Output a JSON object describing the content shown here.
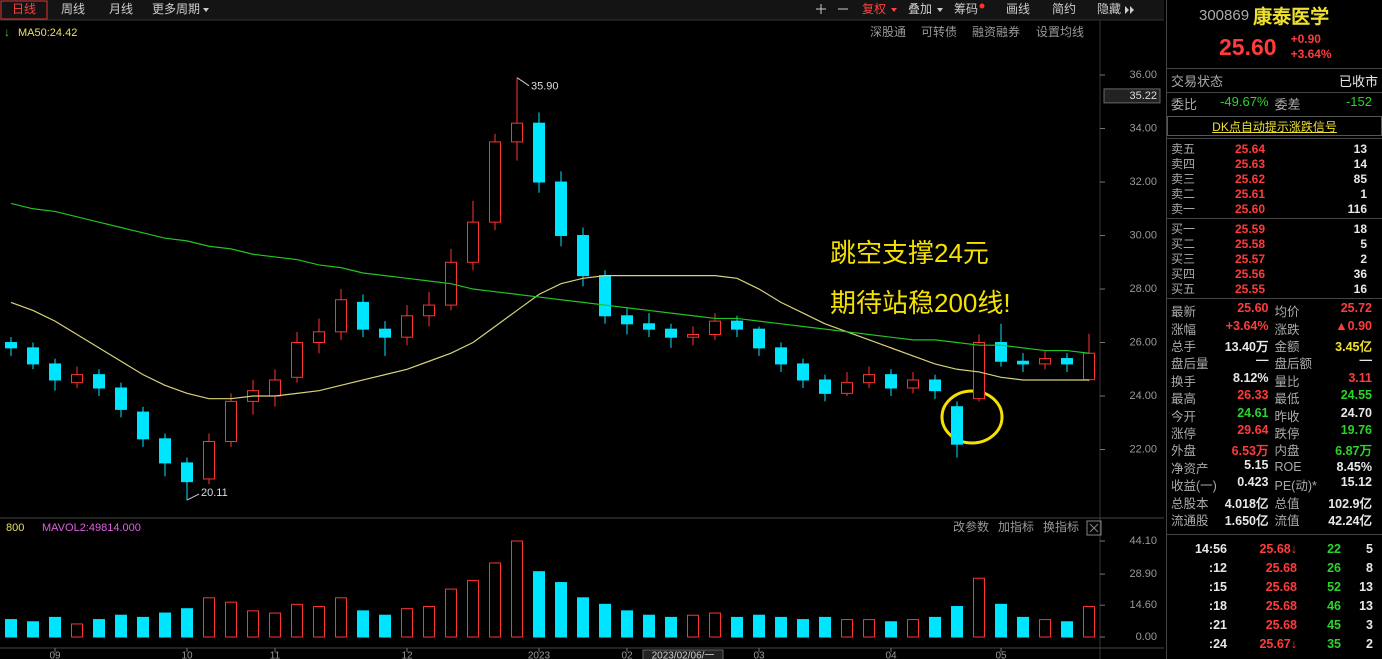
{
  "toolbar": {
    "periods": [
      "日线",
      "周线",
      "月线",
      "更多周期"
    ],
    "tools": [
      "复权",
      "叠加",
      "筹码",
      "画线",
      "简约",
      "隐藏"
    ]
  },
  "settings": [
    "深股通",
    "可转债",
    "融资融券",
    "设置均线"
  ],
  "chart_data": {
    "type": "candlestick",
    "ma_legend": "MA50:24.42",
    "categories": [
      null,
      null,
      "09",
      null,
      null,
      null,
      null,
      null,
      "10",
      null,
      null,
      null,
      "11",
      null,
      null,
      null,
      null,
      null,
      "12",
      null,
      null,
      null,
      null,
      null,
      "2023",
      null,
      null,
      null,
      "02",
      null,
      null,
      null,
      null,
      null,
      "03",
      null,
      null,
      null,
      null,
      null,
      "04",
      null,
      null,
      null,
      null,
      "05",
      null,
      null,
      null,
      null
    ],
    "cursor_date": "2023/02/06/一",
    "candles": [
      [
        26.0,
        26.2,
        25.5,
        25.8
      ],
      [
        25.8,
        26.0,
        25.0,
        25.2
      ],
      [
        25.2,
        25.4,
        24.2,
        24.6
      ],
      [
        24.5,
        25.1,
        24.3,
        24.8
      ],
      [
        24.8,
        25.0,
        24.0,
        24.3
      ],
      [
        24.3,
        24.5,
        23.2,
        23.5
      ],
      [
        23.4,
        23.6,
        22.1,
        22.4
      ],
      [
        22.4,
        22.6,
        21.0,
        21.5
      ],
      [
        21.5,
        21.7,
        20.11,
        20.8
      ],
      [
        20.9,
        22.6,
        20.7,
        22.3
      ],
      [
        22.3,
        24.1,
        22.1,
        23.8
      ],
      [
        23.8,
        24.6,
        23.3,
        24.2
      ],
      [
        24.0,
        25.0,
        23.6,
        24.6
      ],
      [
        24.7,
        26.4,
        24.5,
        26.0
      ],
      [
        26.0,
        26.9,
        25.6,
        26.4
      ],
      [
        26.4,
        28.0,
        26.1,
        27.6
      ],
      [
        27.5,
        27.8,
        26.2,
        26.5
      ],
      [
        26.5,
        26.8,
        25.5,
        26.2
      ],
      [
        26.2,
        27.4,
        25.9,
        27.0
      ],
      [
        27.0,
        27.9,
        26.6,
        27.4
      ],
      [
        27.4,
        29.5,
        27.2,
        29.0
      ],
      [
        29.0,
        31.3,
        28.7,
        30.5
      ],
      [
        30.5,
        33.8,
        30.2,
        33.5
      ],
      [
        33.5,
        35.9,
        32.8,
        34.2
      ],
      [
        34.2,
        34.6,
        31.6,
        32.0
      ],
      [
        32.0,
        32.4,
        29.6,
        30.0
      ],
      [
        30.0,
        30.3,
        28.1,
        28.5
      ],
      [
        28.5,
        28.7,
        26.7,
        27.0
      ],
      [
        27.0,
        27.3,
        26.3,
        26.7
      ],
      [
        26.7,
        27.1,
        26.2,
        26.5
      ],
      [
        26.5,
        26.7,
        25.8,
        26.2
      ],
      [
        26.2,
        26.6,
        25.9,
        26.3
      ],
      [
        26.3,
        27.1,
        26.1,
        26.8
      ],
      [
        26.8,
        27.0,
        26.2,
        26.5
      ],
      [
        26.5,
        26.6,
        25.5,
        25.8
      ],
      [
        25.8,
        26.0,
        24.9,
        25.2
      ],
      [
        25.2,
        25.4,
        24.3,
        24.6
      ],
      [
        24.6,
        24.8,
        23.8,
        24.1
      ],
      [
        24.1,
        24.9,
        24.0,
        24.5
      ],
      [
        24.5,
        25.1,
        24.3,
        24.8
      ],
      [
        24.8,
        25.0,
        24.0,
        24.3
      ],
      [
        24.3,
        24.9,
        24.1,
        24.6
      ],
      [
        24.6,
        24.8,
        23.9,
        24.2
      ],
      [
        23.6,
        23.8,
        21.7,
        22.2
      ],
      [
        23.9,
        26.3,
        23.8,
        26.0
      ],
      [
        26.0,
        26.7,
        25.1,
        25.3
      ],
      [
        25.3,
        25.6,
        24.9,
        25.2
      ],
      [
        25.2,
        25.7,
        25.0,
        25.4
      ],
      [
        25.4,
        25.6,
        24.9,
        25.2
      ],
      [
        24.61,
        26.33,
        24.55,
        25.6
      ]
    ],
    "up_color": "#ff3232",
    "down_color": "#00e5ff",
    "ma_lines": [
      {
        "color": "#d8d27a",
        "values": [
          27.5,
          27.2,
          26.8,
          26.3,
          25.8,
          25.3,
          24.8,
          24.4,
          24.1,
          23.9,
          23.9,
          24.0,
          24.0,
          24.1,
          24.2,
          24.4,
          24.6,
          24.8,
          25.0,
          25.3,
          25.6,
          26.0,
          26.6,
          27.2,
          27.8,
          28.2,
          28.4,
          28.5,
          28.5,
          28.5,
          28.5,
          28.5,
          28.5,
          28.4,
          28.0,
          27.5,
          27.1,
          26.7,
          26.4,
          26.1,
          25.8,
          25.5,
          25.2,
          25.0,
          24.9,
          24.7,
          24.6,
          24.6,
          24.6,
          24.6
        ]
      },
      {
        "color": "#22c322",
        "values": [
          31.2,
          31.0,
          30.9,
          30.7,
          30.5,
          30.3,
          30.1,
          29.9,
          29.8,
          29.6,
          29.5,
          29.3,
          29.2,
          29.1,
          28.9,
          28.8,
          28.6,
          28.5,
          28.4,
          28.3,
          28.2,
          28.0,
          27.9,
          27.8,
          27.7,
          27.6,
          27.5,
          27.4,
          27.3,
          27.2,
          27.1,
          27.0,
          26.9,
          26.9,
          26.8,
          26.7,
          26.6,
          26.5,
          26.4,
          26.3,
          26.2,
          26.1,
          26.1,
          26.0,
          25.9,
          25.9,
          25.8,
          25.7,
          25.7,
          25.6
        ]
      }
    ],
    "ylim": [
      19.5,
      36.3
    ],
    "yticks": [
      {
        "value": 22,
        "label": "22.00"
      },
      {
        "value": 24,
        "label": "24.00"
      },
      {
        "value": 26,
        "label": "26.00"
      },
      {
        "value": 28,
        "label": "28.00"
      },
      {
        "value": 30,
        "label": "30.00"
      },
      {
        "value": 32,
        "label": "32.00"
      },
      {
        "value": 34,
        "label": "34.00"
      },
      {
        "value": 36,
        "label": "36.00"
      }
    ],
    "cursor_price": {
      "value": 35.22,
      "label": "35.22"
    },
    "max_label": "35.90",
    "min_label": "20.11",
    "annotations": [
      "跳空支撑24元",
      "期待站稳200线!"
    ],
    "volume": {
      "header": "800",
      "legend": "MAVOL2:49814.000",
      "tools": [
        "改参数",
        "加指标",
        "换指标"
      ],
      "values": [
        8,
        7,
        9,
        6,
        8,
        10,
        9,
        11,
        13,
        18,
        16,
        12,
        11,
        15,
        14,
        18,
        12,
        10,
        13,
        14,
        22,
        26,
        34,
        44.1,
        30,
        25,
        18,
        15,
        12,
        10,
        9,
        10,
        11,
        9,
        10,
        9,
        8,
        9,
        8,
        8,
        7,
        8,
        9,
        14,
        27,
        15,
        9,
        8,
        7,
        14
      ],
      "ylim": [
        0,
        46.85
      ],
      "yticks": [
        {
          "value": 0,
          "label": "0.00"
        },
        {
          "value": 14.6,
          "label": "14.60"
        },
        {
          "value": 28.9,
          "label": "28.90"
        },
        {
          "value": 44.1,
          "label": "44.10"
        }
      ]
    }
  },
  "quote": {
    "code": "300869",
    "name": "康泰医学",
    "price": "25.60",
    "change": "+0.90",
    "pct": "+3.64%",
    "status_label": "交易状态",
    "status": "已收市",
    "ratio_label": "委比",
    "ratio": "-49.67%",
    "diff_label": "委差",
    "diff": "-152",
    "signal": "DK点自动提示涨跌信号",
    "asks": [
      [
        "卖五",
        "25.64",
        "13"
      ],
      [
        "卖四",
        "25.63",
        "14"
      ],
      [
        "卖三",
        "25.62",
        "85"
      ],
      [
        "卖二",
        "25.61",
        "1"
      ],
      [
        "卖一",
        "25.60",
        "116"
      ]
    ],
    "bids": [
      [
        "买一",
        "25.59",
        "18"
      ],
      [
        "买二",
        "25.58",
        "5"
      ],
      [
        "买三",
        "25.57",
        "2"
      ],
      [
        "买四",
        "25.56",
        "36"
      ],
      [
        "买五",
        "25.55",
        "16"
      ]
    ],
    "stats": [
      [
        {
          "label": "最新",
          "value": "25.60",
          "color": "r"
        },
        {
          "label": "均价",
          "value": "25.72",
          "color": "r"
        }
      ],
      [
        {
          "label": "涨幅",
          "value": "+3.64%",
          "color": "r"
        },
        {
          "label": "涨跌",
          "value": "▲0.90",
          "color": "r"
        }
      ],
      [
        {
          "label": "总手",
          "value": "13.40万",
          "color": "w"
        },
        {
          "label": "金额",
          "value": "3.45亿",
          "color": "y"
        }
      ],
      [
        {
          "label": "盘后量",
          "value": "—",
          "color": "w"
        },
        {
          "label": "盘后额",
          "value": "—",
          "color": "w"
        }
      ],
      [
        {
          "label": "换手",
          "value": "8.12%",
          "color": "w"
        },
        {
          "label": "量比",
          "value": "3.11",
          "color": "r"
        }
      ],
      [
        {
          "label": "最高",
          "value": "26.33",
          "color": "r"
        },
        {
          "label": "最低",
          "value": "24.55",
          "color": "g"
        }
      ],
      [
        {
          "label": "今开",
          "value": "24.61",
          "color": "g"
        },
        {
          "label": "昨收",
          "value": "24.70",
          "color": "w"
        }
      ],
      [
        {
          "label": "涨停",
          "value": "29.64",
          "color": "r"
        },
        {
          "label": "跌停",
          "value": "19.76",
          "color": "g"
        }
      ],
      [
        {
          "label": "外盘",
          "value": "6.53万",
          "color": "r"
        },
        {
          "label": "内盘",
          "value": "6.87万",
          "color": "g"
        }
      ],
      [
        {
          "label": "净资产",
          "value": "5.15",
          "color": "w"
        },
        {
          "label": "ROE",
          "value": "8.45%",
          "color": "w"
        }
      ],
      [
        {
          "label": "收益(一)",
          "value": "0.423",
          "color": "w"
        },
        {
          "label": "PE(动)*",
          "value": "15.12",
          "color": "w"
        }
      ],
      [
        {
          "label": "总股本",
          "value": "4.018亿",
          "color": "w"
        },
        {
          "label": "总值",
          "value": "102.9亿",
          "color": "w"
        }
      ],
      [
        {
          "label": "流通股",
          "value": "1.650亿",
          "color": "w"
        },
        {
          "label": "流值",
          "value": "42.24亿",
          "color": "w"
        }
      ]
    ],
    "ticks": [
      [
        "14:56",
        "25.68↓",
        "22",
        "5"
      ],
      [
        ":12",
        "25.68",
        "26",
        "8"
      ],
      [
        ":15",
        "25.68",
        "52",
        "13"
      ],
      [
        ":18",
        "25.68",
        "46",
        "13"
      ],
      [
        ":21",
        "25.68",
        "45",
        "3"
      ],
      [
        ":24",
        "25.67↓",
        "35",
        "2"
      ]
    ]
  }
}
